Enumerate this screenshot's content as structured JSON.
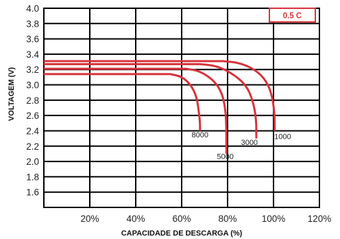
{
  "chart_data": {
    "type": "line",
    "xlabel": "CAPACIDADE DE DESCARGA (%)",
    "ylabel": "VOLTAGEM (V)",
    "xlim": [
      0,
      120
    ],
    "ylim": [
      1.4,
      4.0
    ],
    "x_ticks": [
      "20%",
      "40%",
      "60%",
      "80%",
      "100%",
      "120%"
    ],
    "x_tick_values": [
      20,
      40,
      60,
      80,
      100,
      120
    ],
    "y_ticks": [
      "1.6",
      "1.8",
      "2.0",
      "2.2",
      "2.4",
      "2.6",
      "2.8",
      "3.0",
      "3.2",
      "3.4",
      "3.6",
      "3.8",
      "4.0"
    ],
    "y_tick_values": [
      1.6,
      1.8,
      2.0,
      2.2,
      2.4,
      2.6,
      2.8,
      3.0,
      3.2,
      3.4,
      3.6,
      3.8,
      4.0
    ],
    "grid": true,
    "rate_label": "0.5 C",
    "line_color": "#d6333b",
    "series": [
      {
        "name": "1000",
        "x": [
          0,
          78,
          85,
          92,
          97,
          99.5,
          100.5,
          100.5
        ],
        "y": [
          3.31,
          3.31,
          3.29,
          3.2,
          3.05,
          2.85,
          2.6,
          2.4
        ]
      },
      {
        "name": "3000",
        "x": [
          0,
          68,
          75,
          82,
          88,
          91,
          92.5,
          92.5
        ],
        "y": [
          3.27,
          3.27,
          3.25,
          3.15,
          3.0,
          2.8,
          2.55,
          2.3
        ]
      },
      {
        "name": "5000",
        "x": [
          0,
          62,
          68,
          74,
          77.5,
          79,
          79.5,
          79.5
        ],
        "y": [
          3.21,
          3.21,
          3.18,
          3.06,
          2.9,
          2.7,
          2.45,
          2.1
        ]
      },
      {
        "name": "8000",
        "x": [
          0,
          55,
          60,
          64,
          66.5,
          67.5,
          68,
          68
        ],
        "y": [
          3.14,
          3.14,
          3.11,
          3.0,
          2.85,
          2.65,
          2.5,
          2.4
        ]
      }
    ],
    "annotations": [
      {
        "text": "1000",
        "x": 104,
        "y": 2.33
      },
      {
        "text": "3000",
        "x": 89.5,
        "y": 2.25
      },
      {
        "text": "5000",
        "x": 79,
        "y": 2.07
      },
      {
        "text": "8000",
        "x": 68,
        "y": 2.35
      }
    ]
  }
}
